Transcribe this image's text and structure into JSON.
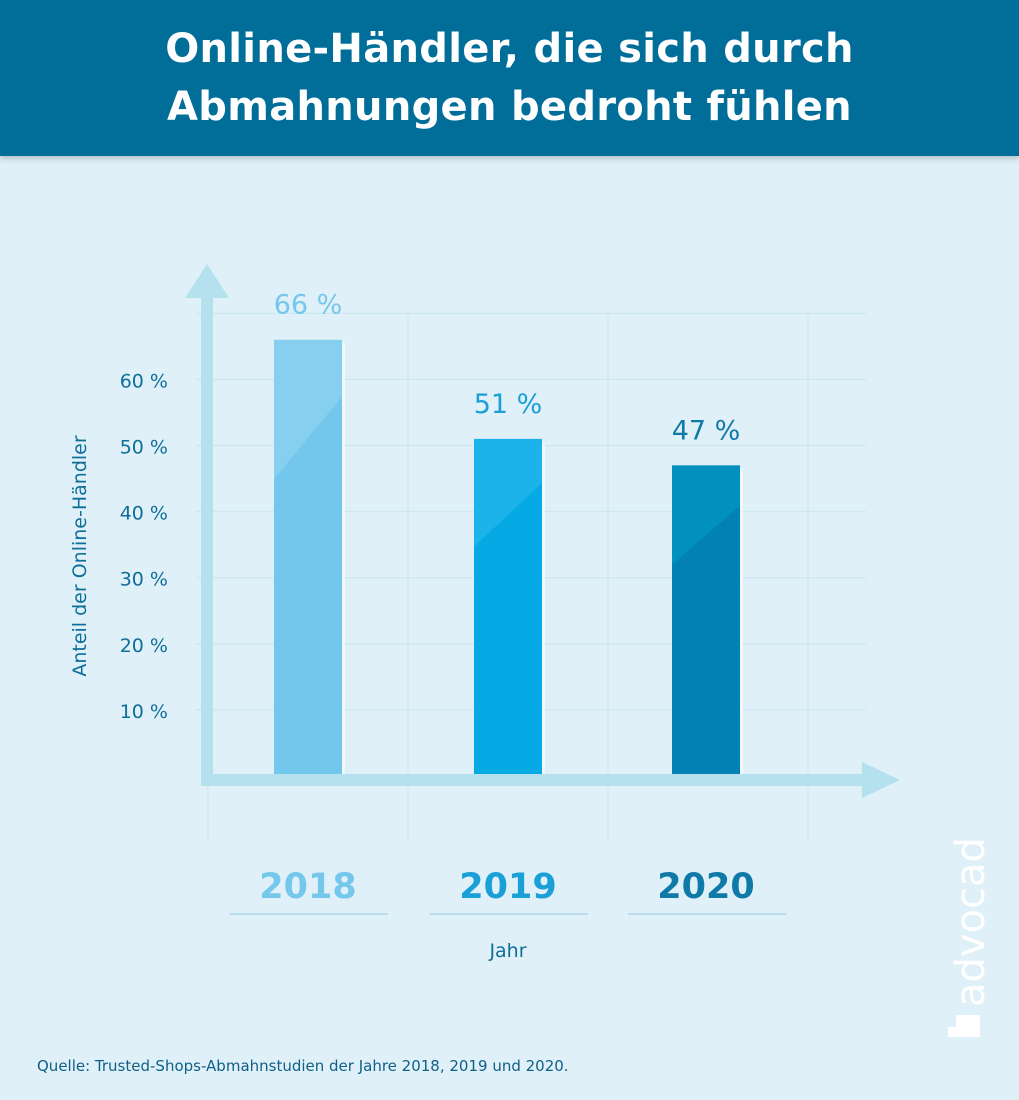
{
  "header": {
    "title_line1": "Online-Händler, die sich durch",
    "title_line2": "Abmahnungen bedroht fühlen"
  },
  "chart_data": {
    "type": "bar",
    "categories": [
      "2018",
      "2019",
      "2020"
    ],
    "values": [
      66,
      51,
      47
    ],
    "value_labels": [
      "66 %",
      "51 %",
      "47 %"
    ],
    "ylabel": "Anteil der Online-Händler",
    "xlabel": "Jahr",
    "yticks": [
      10,
      20,
      30,
      40,
      50,
      60
    ],
    "ytick_labels": [
      "10 %",
      "20 %",
      "30 %",
      "40 %",
      "50 %",
      "60 %"
    ],
    "ylim": [
      0,
      70
    ],
    "grid": true,
    "bar_colors": [
      "#74c7ec",
      "#05aae5",
      "#0282b4"
    ],
    "bar_top_colors": [
      "#86cfee",
      "#1bb3ea",
      "#0091be"
    ],
    "label_colors": [
      "#75c8ec",
      "#1a9fd6",
      "#0f7aa8"
    ]
  },
  "footer": {
    "source": "Quelle: Trusted-Shops-Abmahnstudien der Jahre 2018, 2019 und 2020."
  },
  "logo": {
    "text": "advocado"
  },
  "colors": {
    "background": "#dff0f9",
    "header": "#016e99",
    "axis": "#b5e0ee",
    "grid": "#cce6f2",
    "tick_text": "#0f6f99"
  }
}
